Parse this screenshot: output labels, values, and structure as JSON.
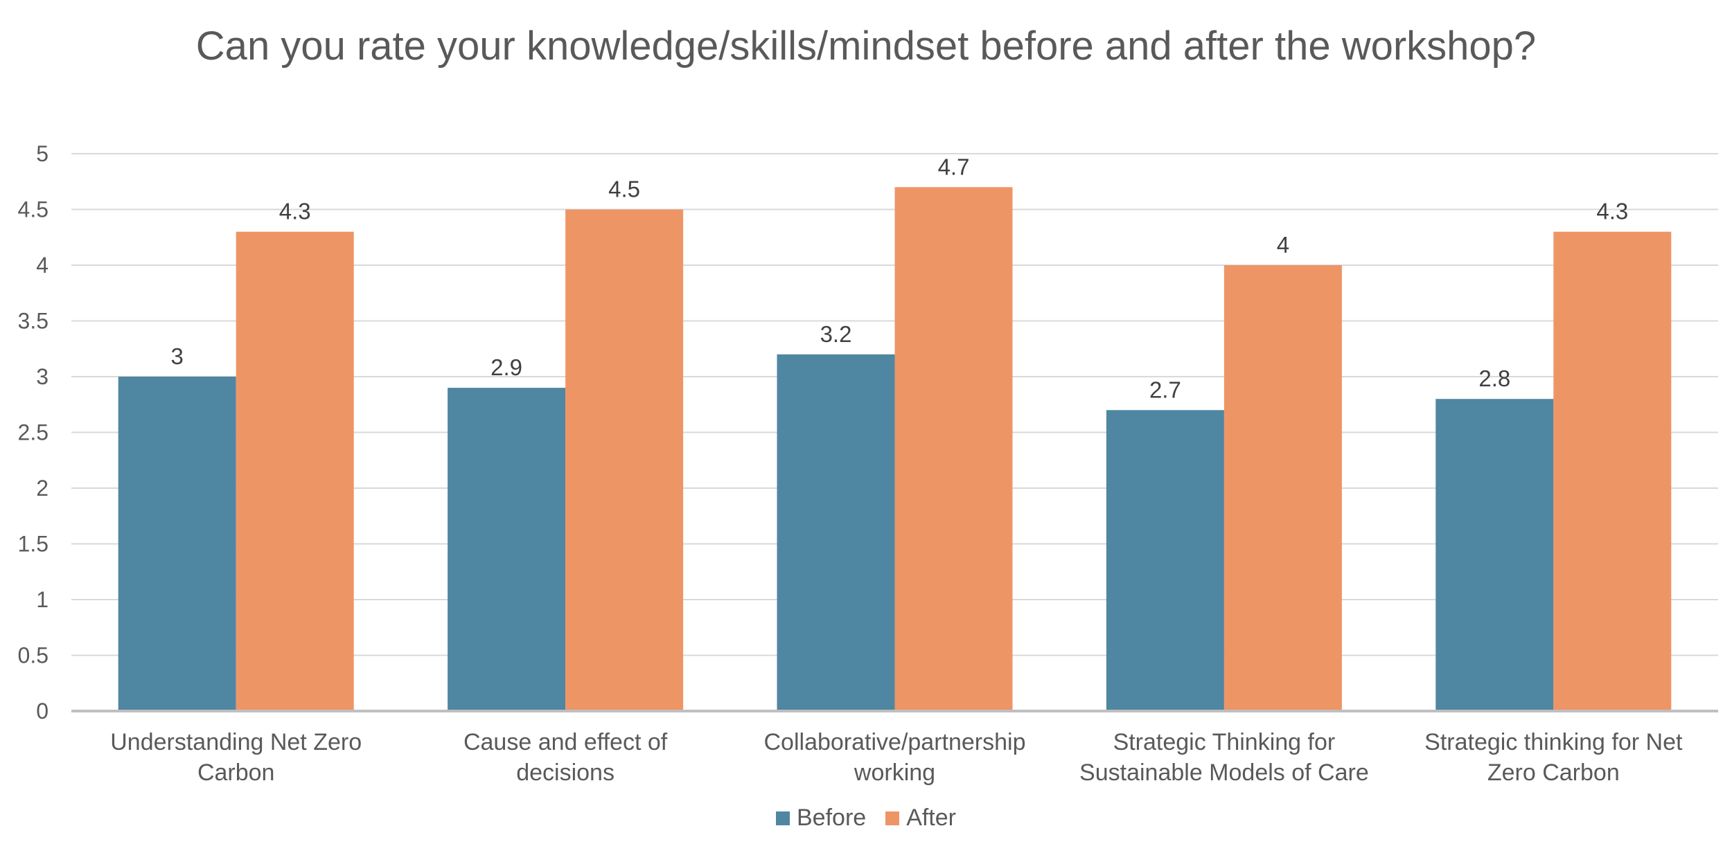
{
  "chart_data": {
    "type": "bar",
    "title": "Can you rate your knowledge/skills/mindset before and after the workshop?",
    "xlabel": "",
    "ylabel": "",
    "ylim": [
      0,
      5
    ],
    "yticks": [
      "0",
      "0.5",
      "1",
      "1.5",
      "2",
      "2.5",
      "3",
      "3.5",
      "4",
      "4.5",
      "5"
    ],
    "grid": true,
    "legend_position": "bottom",
    "categories": [
      [
        "Understanding Net Zero",
        "Carbon"
      ],
      [
        "Cause and effect of",
        "decisions"
      ],
      [
        "Collaborative/partnership",
        "working"
      ],
      [
        "Strategic Thinking for",
        "Sustainable Models of Care"
      ],
      [
        "Strategic thinking for Net",
        "Zero Carbon"
      ]
    ],
    "series": [
      {
        "name": "Before",
        "color": "#4F86A2",
        "values": [
          3,
          2.9,
          3.2,
          2.7,
          2.8
        ],
        "labels": [
          "3",
          "2.9",
          "3.2",
          "2.7",
          "2.8"
        ]
      },
      {
        "name": "After",
        "color": "#EE9566",
        "values": [
          4.3,
          4.5,
          4.7,
          4,
          4.3
        ],
        "labels": [
          "4.3",
          "4.5",
          "4.7",
          "4",
          "4.3"
        ]
      }
    ]
  }
}
